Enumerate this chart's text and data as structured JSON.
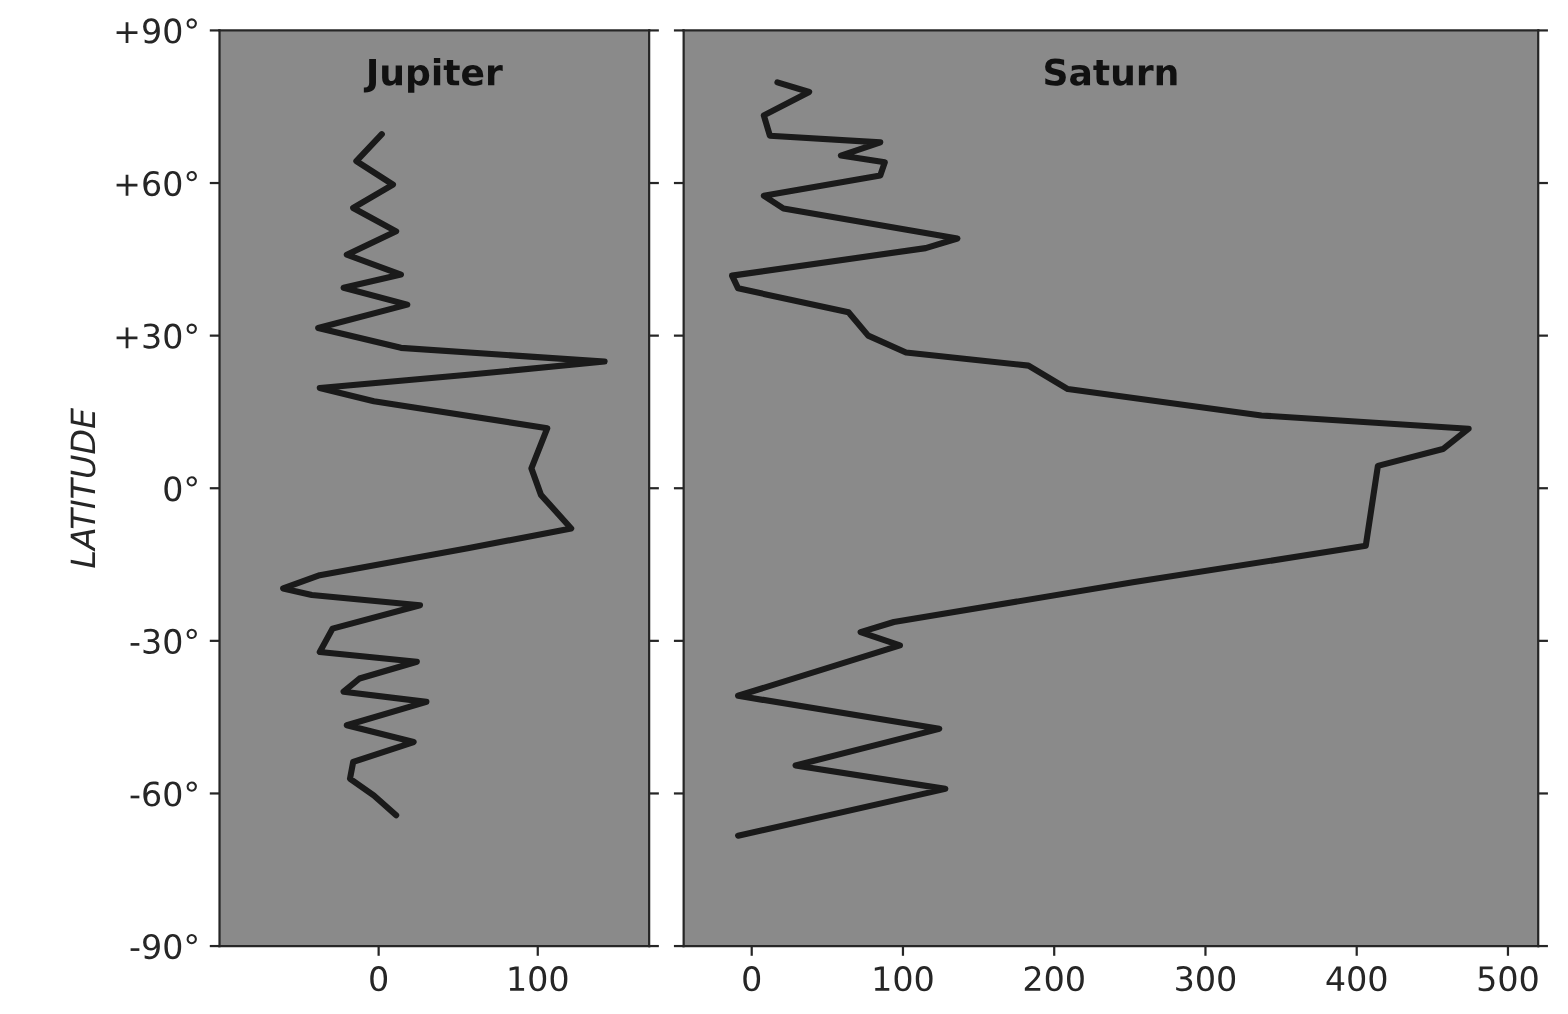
{
  "chart_data": [
    {
      "type": "line",
      "title": "Jupiter",
      "ylabel": "LATITUDE",
      "series": [
        {
          "color": "#1a1a1a",
          "x": [
            2,
            -14,
            9,
            -16,
            11,
            -20,
            14,
            -22,
            18,
            -38,
            14,
            142,
            56,
            -37,
            -3,
            106,
            96,
            102,
            121,
            56,
            -37,
            -60,
            -42,
            26,
            -29,
            -37,
            24,
            -12,
            -22,
            30,
            -20,
            22,
            -16,
            -18,
            -3,
            11
          ],
          "values": [
            69.6,
            64.3,
            59.7,
            55.1,
            50.5,
            45.9,
            42,
            39.4,
            36.1,
            31.5,
            27.6,
            24.9,
            22.3,
            19.7,
            17.1,
            11.8,
            3.9,
            -1.3,
            -7.9,
            -11.8,
            -17.1,
            -19.7,
            -21,
            -23,
            -27.6,
            -32.2,
            -34.1,
            -37.4,
            -40,
            -42,
            -46.6,
            -49.9,
            -53.8,
            -57.1,
            -60.4,
            -64.3
          ]
        }
      ],
      "xlim": [
        -100,
        170
      ],
      "xticks": [
        0,
        100
      ],
      "ylim": [
        -90,
        90
      ],
      "yticks": [
        {
          "value": 90,
          "label": "+90°"
        },
        {
          "value": 60,
          "label": "+60°"
        },
        {
          "value": 30,
          "label": "+30°"
        },
        {
          "value": 0,
          "label": "0°"
        },
        {
          "value": -30,
          "label": "-30°"
        },
        {
          "value": -60,
          "label": "-60°"
        },
        {
          "value": -90,
          "label": "-90°"
        }
      ],
      "marker": "none",
      "line_style": "solid",
      "grid": false,
      "legend": false
    },
    {
      "type": "line",
      "title": "Saturn",
      "series": [
        {
          "color": "#1a1a1a",
          "x": [
            17,
            38,
            8,
            12,
            85,
            59,
            88,
            85,
            8,
            21,
            136,
            115,
            -13,
            -9,
            64,
            77,
            102,
            183,
            209,
            337,
            474,
            457,
            414,
            406,
            252,
            94,
            72,
            98,
            -9,
            124,
            29,
            128,
            -9
          ],
          "values": [
            79.8,
            77.9,
            73.3,
            69.3,
            68,
            65.4,
            64.1,
            61.5,
            57.5,
            55,
            49.1,
            47.2,
            41.8,
            39.3,
            34.6,
            30,
            26.7,
            24.1,
            19.5,
            14.3,
            11.7,
            7.7,
            4.4,
            -11.3,
            -18.5,
            -26.3,
            -28.3,
            -30.9,
            -40.8,
            -47.3,
            -54.5,
            -59.1,
            -68.3
          ]
        }
      ],
      "xlim": [
        -45,
        520
      ],
      "xticks": [
        0,
        100,
        200,
        300,
        400,
        500
      ],
      "ylim": [
        -90,
        90
      ],
      "yticks": [
        90,
        60,
        30,
        0,
        -30,
        -60,
        -90
      ],
      "tick_labels": "x",
      "marker": "none",
      "line_style": "solid",
      "grid": false,
      "legend": false
    }
  ]
}
